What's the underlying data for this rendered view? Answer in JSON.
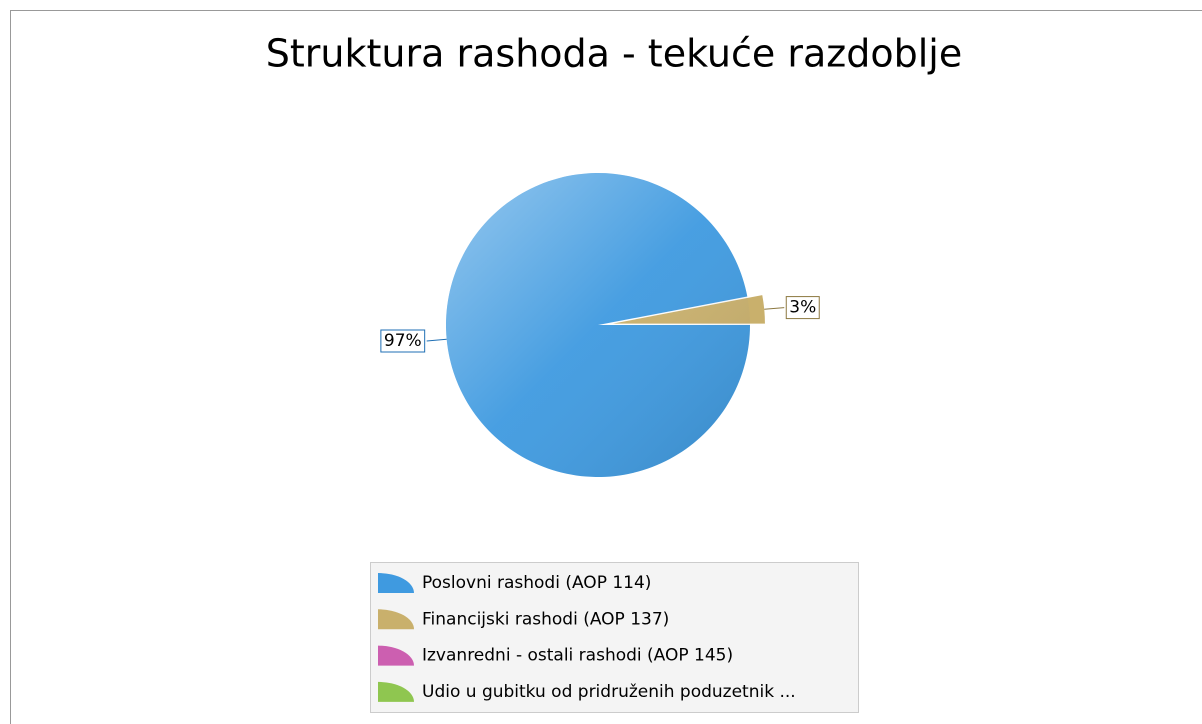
{
  "chart_data": {
    "type": "pie",
    "title": "Struktura rashoda - tekuće razdoblje",
    "categories": [
      "Poslovni rashodi (AOP 114)",
      "Financijski rashodi (AOP 137)",
      "Izvanredni - ostali rashodi (AOP 145)",
      "Udio u gubitku od pridruženih poduzetnik ..."
    ],
    "values": [
      97,
      3,
      0,
      0
    ],
    "value_labels": [
      "97%",
      "3%",
      null,
      null
    ],
    "colors": [
      "#3f9ae0",
      "#c9b06c",
      "#cc5fb0",
      "#8fc650"
    ],
    "label_border_colors": [
      "#1f6fb4",
      "#8c7840",
      "#a0408a",
      "#5f9a30"
    ]
  }
}
